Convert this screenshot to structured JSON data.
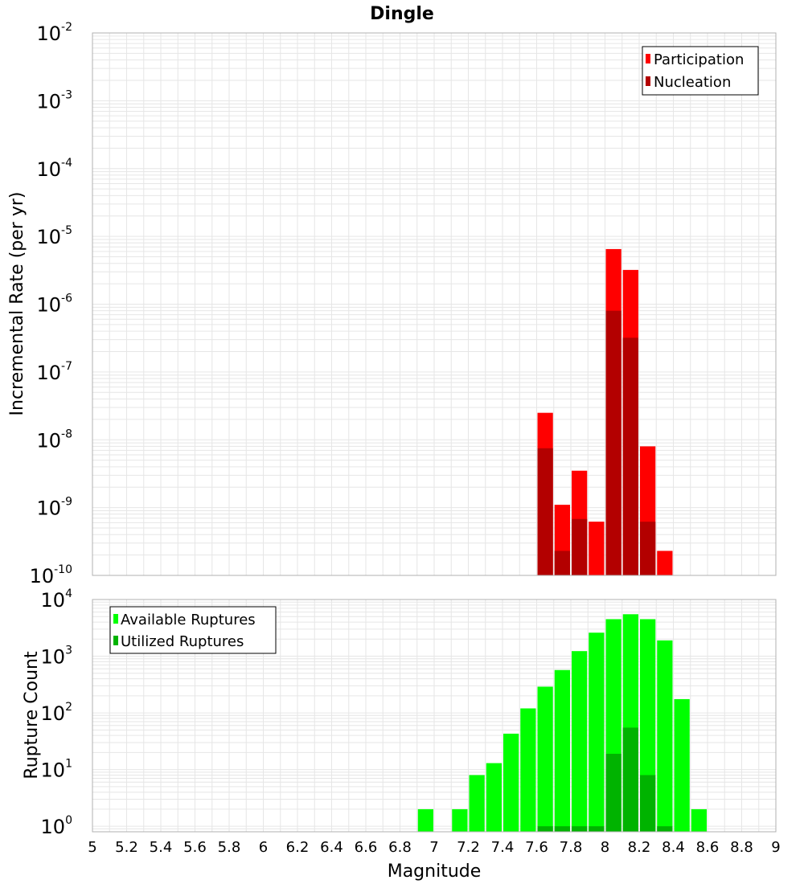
{
  "colors": {
    "participation": "#ff0000",
    "nucleation": "#b30000",
    "available": "#00ff00",
    "utilized": "#00b300",
    "gridline": "#e6e6e6",
    "frame": "#b0b0b0",
    "legend_border": "#000000"
  },
  "chart_data": [
    {
      "type": "bar",
      "title": "Dingle",
      "xlabel": "",
      "ylabel": "Incremental Rate (per yr)",
      "yscale": "log",
      "ylim": [
        1e-10,
        0.01
      ],
      "xlim": [
        5,
        9
      ],
      "bin_width": 0.1,
      "grid": true,
      "legend_position": "top-right",
      "y_ticks": [
        {
          "base": "10",
          "exp": "-10"
        },
        {
          "base": "10",
          "exp": "-9"
        },
        {
          "base": "10",
          "exp": "-8"
        },
        {
          "base": "10",
          "exp": "-7"
        },
        {
          "base": "10",
          "exp": "-6"
        },
        {
          "base": "10",
          "exp": "-5"
        },
        {
          "base": "10",
          "exp": "-4"
        },
        {
          "base": "10",
          "exp": "-3"
        },
        {
          "base": "10",
          "exp": "-2"
        }
      ],
      "series": [
        {
          "name": "Participation",
          "x": [
            7.65,
            7.75,
            7.85,
            7.95,
            8.05,
            8.15,
            8.25,
            8.35
          ],
          "values": [
            2.5e-08,
            1.1e-09,
            3.5e-09,
            6.2e-10,
            6.5e-06,
            3.2e-06,
            8e-09,
            2.3e-10
          ]
        },
        {
          "name": "Nucleation",
          "x": [
            7.65,
            7.75,
            7.85,
            8.05,
            8.15,
            8.25
          ],
          "values": [
            7.5e-09,
            2.3e-10,
            6.8e-10,
            8e-07,
            3.2e-07,
            6.2e-10
          ]
        }
      ]
    },
    {
      "type": "bar",
      "title": "",
      "xlabel": "Magnitude",
      "ylabel": "Rupture Count",
      "yscale": "log",
      "ylim": [
        0.8,
        10000
      ],
      "xlim": [
        5,
        9
      ],
      "bin_width": 0.1,
      "grid": true,
      "legend_position": "top-left",
      "x_ticks": [
        "5",
        "5.2",
        "5.4",
        "5.6",
        "5.8",
        "6",
        "6.2",
        "6.4",
        "6.6",
        "6.8",
        "7",
        "7.2",
        "7.4",
        "7.6",
        "7.8",
        "8",
        "8.2",
        "8.4",
        "8.6",
        "8.8",
        "9"
      ],
      "y_ticks": [
        {
          "base": "10",
          "exp": "0"
        },
        {
          "base": "10",
          "exp": "1"
        },
        {
          "base": "10",
          "exp": "2"
        },
        {
          "base": "10",
          "exp": "3"
        },
        {
          "base": "10",
          "exp": "4"
        }
      ],
      "series": [
        {
          "name": "Available Ruptures",
          "x": [
            6.95,
            7.15,
            7.25,
            7.35,
            7.45,
            7.55,
            7.65,
            7.75,
            7.85,
            7.95,
            8.05,
            8.15,
            8.25,
            8.35,
            8.45,
            8.55
          ],
          "values": [
            2,
            2,
            8,
            13,
            43,
            120,
            290,
            570,
            1230,
            2600,
            4500,
            5500,
            4500,
            1900,
            175,
            2
          ]
        },
        {
          "name": "Utilized Ruptures",
          "x": [
            7.65,
            7.75,
            7.85,
            7.95,
            8.05,
            8.15,
            8.25,
            8.35
          ],
          "values": [
            1,
            1,
            1,
            1,
            19,
            55,
            8,
            1
          ]
        }
      ]
    }
  ]
}
